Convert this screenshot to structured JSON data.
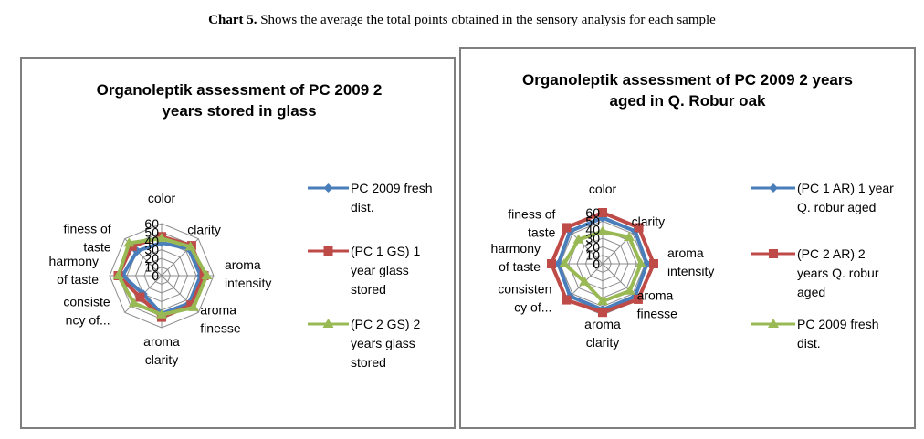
{
  "caption": {
    "bold": "Chart 5.",
    "text": " Shows the average the total points obtained in the sensory analysis for each sample"
  },
  "chart_data": [
    {
      "type": "radar",
      "title": [
        "Organoleptik assessment of PC 2009 2",
        "years stored in glass"
      ],
      "axes": [
        [
          "color"
        ],
        [
          "clarity"
        ],
        [
          "aroma",
          "intensity"
        ],
        [
          "aroma",
          "finesse"
        ],
        [
          "aroma",
          "clarity"
        ],
        [
          "consiste",
          "ncy of..."
        ],
        [
          "harmony",
          "of taste"
        ],
        [
          "finess of",
          "taste"
        ]
      ],
      "rlim": [
        0,
        60
      ],
      "ticks": [
        "0",
        "10",
        "20",
        "30",
        "40",
        "50",
        "60"
      ],
      "series": [
        {
          "name": [
            "PC 2009 fresh",
            "dist."
          ],
          "color": "#4a7ebb",
          "marker": "diamond",
          "values": [
            38,
            44,
            45,
            45,
            44,
            30,
            45,
            40
          ]
        },
        {
          "name": [
            "(PC 1 GS)  1",
            "year glass",
            "stored"
          ],
          "color": "#be4b48",
          "marker": "square",
          "values": [
            45,
            49,
            49,
            48,
            48,
            35,
            50,
            48
          ]
        },
        {
          "name": [
            "(PC 2 GS) 2",
            "years glass",
            "stored"
          ],
          "color": "#98b954",
          "marker": "triangle",
          "values": [
            43,
            47,
            52,
            52,
            45,
            45,
            50,
            53
          ]
        }
      ]
    },
    {
      "type": "radar",
      "title": [
        "Organoleptik assessment of PC 2009 2 years",
        "aged in Q. Robur oak"
      ],
      "axes": [
        [
          "color"
        ],
        [
          "clarity"
        ],
        [
          "aroma",
          "intensity"
        ],
        [
          "aroma",
          "finesse"
        ],
        [
          "aroma",
          "clarity"
        ],
        [
          "consisten",
          "cy of..."
        ],
        [
          "harmony",
          "of taste"
        ],
        [
          "finess of",
          "taste"
        ]
      ],
      "rlim": [
        0,
        60
      ],
      "ticks": [
        "0",
        "10",
        "20",
        "30",
        "40",
        "50",
        "60"
      ],
      "series": [
        {
          "name": [
            "(PC 1 AR) 1 year",
            "Q. robur aged"
          ],
          "color": "#4a7ebb",
          "marker": "diamond",
          "values": [
            54,
            54,
            52,
            54,
            54,
            54,
            52,
            54
          ]
        },
        {
          "name": [
            "(PC 2 AR) 2",
            "years Q. robur",
            "aged"
          ],
          "color": "#be4b48",
          "marker": "square",
          "values": [
            60,
            60,
            60,
            59,
            57,
            60,
            60,
            60
          ]
        },
        {
          "name": [
            "PC 2009 fresh",
            "dist."
          ],
          "color": "#98b954",
          "marker": "triangle",
          "values": [
            38,
            44,
            45,
            45,
            44,
            30,
            45,
            40
          ]
        }
      ]
    }
  ]
}
